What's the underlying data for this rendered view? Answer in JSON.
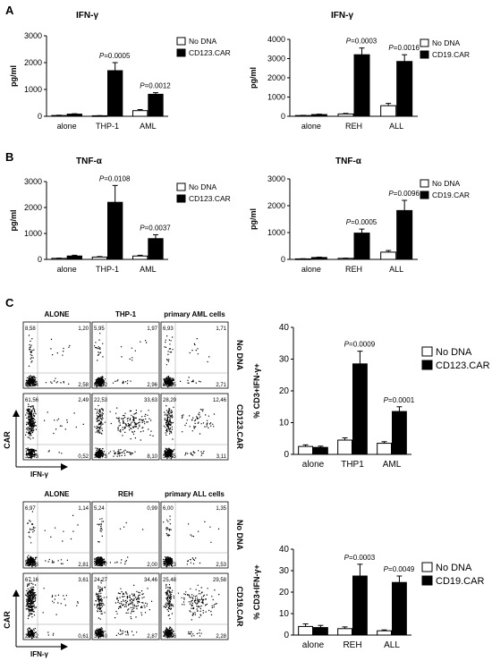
{
  "panels": {
    "a": "A",
    "b": "B",
    "c": "C"
  },
  "legend": {
    "no_dna": "No DNA",
    "cd123": "CD123.CAR",
    "cd19": "CD19.CAR"
  },
  "colors": {
    "no_dna": "#ffffff",
    "car": "#000000",
    "axis": "#000000"
  },
  "chart_data": [
    {
      "id": "ifn_cd123",
      "type": "bar",
      "title": "IFN-γ",
      "ylabel": "pg/ml",
      "ylim": [
        0,
        3000
      ],
      "yticks": [
        0,
        1000,
        2000,
        3000
      ],
      "categories": [
        "alone",
        "THP-1",
        "AML"
      ],
      "series": [
        {
          "name": "No DNA",
          "values": [
            30,
            20,
            210
          ],
          "errors": [
            10,
            5,
            40
          ]
        },
        {
          "name": "CD123.CAR",
          "values": [
            80,
            1700,
            820
          ],
          "errors": [
            15,
            300,
            60
          ]
        }
      ],
      "pvalues": [
        "",
        "P=0.0005",
        "P=0.0012"
      ]
    },
    {
      "id": "ifn_cd19",
      "type": "bar",
      "title": "IFN-γ",
      "ylabel": "pg/ml",
      "ylim": [
        0,
        4000
      ],
      "yticks": [
        0,
        1000,
        2000,
        3000,
        4000
      ],
      "categories": [
        "alone",
        "REH",
        "ALL"
      ],
      "series": [
        {
          "name": "No DNA",
          "values": [
            40,
            120,
            550
          ],
          "errors": [
            10,
            30,
            120
          ]
        },
        {
          "name": "CD19.CAR",
          "values": [
            90,
            3200,
            2850
          ],
          "errors": [
            20,
            350,
            350
          ]
        }
      ],
      "pvalues": [
        "",
        "P=0.0003",
        "P=0.0016"
      ]
    },
    {
      "id": "tnf_cd123",
      "type": "bar",
      "title": "TNF-α",
      "ylabel": "pg/ml",
      "ylim": [
        0,
        3000
      ],
      "yticks": [
        0,
        1000,
        2000,
        3000
      ],
      "categories": [
        "alone",
        "THP-1",
        "AML"
      ],
      "series": [
        {
          "name": "No DNA",
          "values": [
            40,
            90,
            130
          ],
          "errors": [
            10,
            20,
            30
          ]
        },
        {
          "name": "CD123.CAR",
          "values": [
            130,
            2200,
            800
          ],
          "errors": [
            30,
            650,
            150
          ]
        }
      ],
      "pvalues": [
        "",
        "P=0.0108",
        "P=0.0037"
      ]
    },
    {
      "id": "tnf_cd19",
      "type": "bar",
      "title": "TNF-α",
      "ylabel": "pg/ml",
      "ylim": [
        0,
        3000
      ],
      "yticks": [
        0,
        1000,
        2000,
        3000
      ],
      "categories": [
        "alone",
        "REH",
        "ALL"
      ],
      "series": [
        {
          "name": "No DNA",
          "values": [
            20,
            40,
            270
          ],
          "errors": [
            5,
            10,
            60
          ]
        },
        {
          "name": "CD19.CAR",
          "values": [
            70,
            980,
            1820
          ],
          "errors": [
            15,
            150,
            380
          ]
        }
      ],
      "pvalues": [
        "",
        "P=0.0005",
        "P=0.0096"
      ]
    },
    {
      "id": "pct_cd123",
      "type": "bar",
      "title": "",
      "ylabel": "% CD3+IFN-γ+",
      "ylim": [
        0,
        40
      ],
      "yticks": [
        0,
        10,
        20,
        30,
        40
      ],
      "categories": [
        "alone",
        "THP1",
        "AML"
      ],
      "series": [
        {
          "name": "No DNA",
          "values": [
            2.5,
            4.5,
            3.5
          ],
          "errors": [
            0.5,
            0.7,
            0.5
          ]
        },
        {
          "name": "CD123.CAR",
          "values": [
            2.2,
            28.5,
            13.5
          ],
          "errors": [
            0.4,
            4.0,
            1.5
          ]
        }
      ],
      "pvalues": [
        "",
        "P=0.0009",
        "P=0.0001"
      ]
    },
    {
      "id": "pct_cd19",
      "type": "bar",
      "title": "",
      "ylabel": "% CD3+IFN-γ+",
      "ylim": [
        0,
        40
      ],
      "yticks": [
        0,
        10,
        20,
        30,
        40
      ],
      "categories": [
        "alone",
        "REH",
        "ALL"
      ],
      "series": [
        {
          "name": "No DNA",
          "values": [
            4,
            3,
            2
          ],
          "errors": [
            1.2,
            0.8,
            0.4
          ]
        },
        {
          "name": "CD19.CAR",
          "values": [
            3.5,
            27.5,
            24.5
          ],
          "errors": [
            1.0,
            5.5,
            3.0
          ]
        }
      ],
      "pvalues": [
        "",
        "P=0.0003",
        "P=0.0049"
      ]
    }
  ],
  "flow": {
    "set1": {
      "titles": [
        "ALONE",
        "THP-1",
        "primary AML cells"
      ],
      "row_labels": [
        "No DNA",
        "CD123.CAR"
      ],
      "rows": [
        [
          [
            "8,58",
            "1,20",
            "87,64",
            "2,58"
          ],
          [
            "5,95",
            "1,97",
            "89,12",
            "2,96"
          ],
          [
            "6,93",
            "1,71",
            "88,65",
            "2,71"
          ]
        ],
        [
          [
            "61,56",
            "2,49",
            "35,43",
            "0,52"
          ],
          [
            "22,53",
            "33,63",
            "35,73",
            "8,10"
          ],
          [
            "28,29",
            "12,46",
            "56,15",
            "3,11"
          ]
        ]
      ]
    },
    "set2": {
      "titles": [
        "ALONE",
        "REH",
        "primary ALL cells"
      ],
      "row_labels": [
        "No DNA",
        "CD19.CAR"
      ],
      "rows": [
        [
          [
            "6,97",
            "1,14",
            "89,03",
            "2,81"
          ],
          [
            "5,24",
            "0,99",
            "91,77",
            "2,00"
          ],
          [
            "6,00",
            "1,35",
            "90,13",
            "2,53"
          ]
        ],
        [
          [
            "67,16",
            "3,61",
            "28,62",
            "0,61"
          ],
          [
            "24,27",
            "34,46",
            "38,40",
            "2,87"
          ],
          [
            "25,48",
            "29,58",
            "42,66",
            "2,28"
          ]
        ]
      ]
    },
    "axis_y": "CAR",
    "axis_x": "IFN-γ"
  }
}
